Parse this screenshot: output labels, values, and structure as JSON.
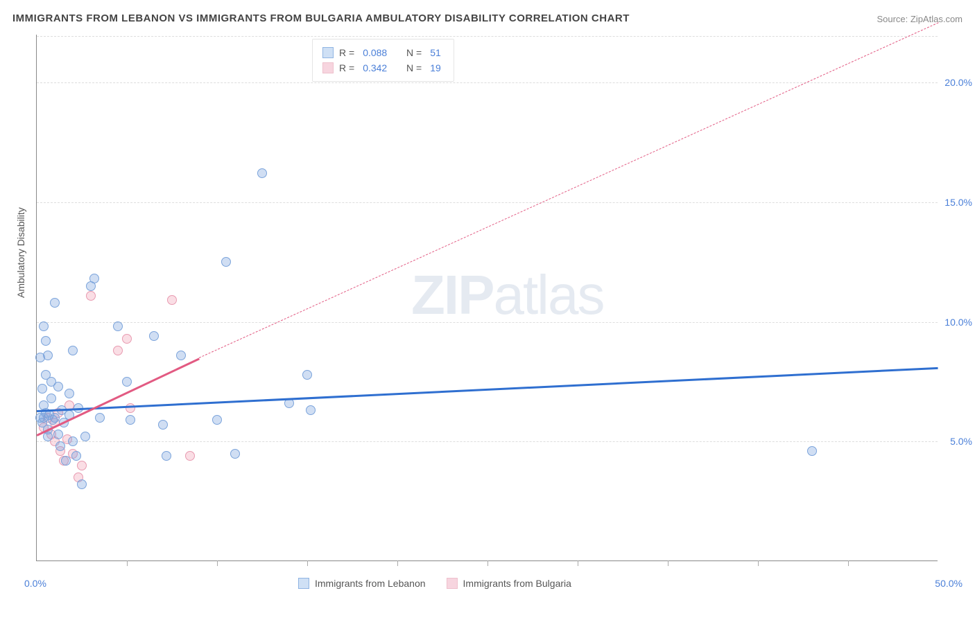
{
  "title": "IMMIGRANTS FROM LEBANON VS IMMIGRANTS FROM BULGARIA AMBULATORY DISABILITY CORRELATION CHART",
  "source": "Source: ZipAtlas.com",
  "ylabel": "Ambulatory Disability",
  "watermark_bold": "ZIP",
  "watermark_light": "atlas",
  "chart": {
    "type": "scatter",
    "xlim": [
      0,
      50
    ],
    "ylim": [
      0,
      22
    ],
    "yticks": [
      5,
      10,
      15,
      20
    ],
    "ytick_labels": [
      "5.0%",
      "10.0%",
      "15.0%",
      "20.0%"
    ],
    "xticks": [
      5,
      10,
      15,
      20,
      25,
      30,
      35,
      40,
      45
    ],
    "xmin_label": "0.0%",
    "xmax_label": "50.0%",
    "background_color": "#ffffff",
    "grid_color": "#dddddd",
    "marker_radius": 7,
    "marker_stroke_width": 1.5,
    "series": {
      "lebanon": {
        "label": "Immigrants from Lebanon",
        "fill": "rgba(120,160,220,0.35)",
        "stroke": "#7aa3db",
        "swatch_fill": "#cfe0f5",
        "swatch_border": "#8fb4e3",
        "line_color": "#2f6fd0",
        "R": "0.088",
        "N": "51",
        "trend": {
          "x1": 0,
          "y1": 6.3,
          "x2": 50,
          "y2": 8.1,
          "dash_after_x": 50
        },
        "points": [
          [
            0.2,
            6.0
          ],
          [
            0.3,
            5.8
          ],
          [
            0.5,
            6.2
          ],
          [
            0.4,
            6.5
          ],
          [
            0.6,
            5.5
          ],
          [
            0.3,
            7.2
          ],
          [
            0.8,
            6.8
          ],
          [
            0.5,
            9.2
          ],
          [
            0.6,
            8.6
          ],
          [
            1.0,
            10.8
          ],
          [
            0.4,
            9.8
          ],
          [
            0.8,
            7.5
          ],
          [
            1.2,
            7.3
          ],
          [
            1.5,
            5.8
          ],
          [
            1.8,
            6.1
          ],
          [
            2.0,
            5.0
          ],
          [
            1.6,
            4.2
          ],
          [
            2.2,
            4.4
          ],
          [
            2.5,
            3.2
          ],
          [
            3.0,
            11.5
          ],
          [
            3.2,
            11.8
          ],
          [
            4.5,
            9.8
          ],
          [
            5.0,
            7.5
          ],
          [
            5.2,
            5.9
          ],
          [
            6.5,
            9.4
          ],
          [
            7.0,
            5.7
          ],
          [
            7.2,
            4.4
          ],
          [
            8.0,
            8.6
          ],
          [
            10.0,
            5.9
          ],
          [
            10.5,
            12.5
          ],
          [
            11.0,
            4.5
          ],
          [
            12.5,
            16.2
          ],
          [
            14.0,
            6.6
          ],
          [
            15.0,
            7.8
          ],
          [
            15.2,
            6.3
          ],
          [
            0.7,
            6.1
          ],
          [
            1.0,
            6.0
          ],
          [
            1.2,
            5.3
          ],
          [
            1.3,
            4.8
          ],
          [
            1.8,
            7.0
          ],
          [
            2.3,
            6.4
          ],
          [
            2.7,
            5.2
          ],
          [
            3.5,
            6.0
          ],
          [
            0.2,
            8.5
          ],
          [
            0.4,
            6.0
          ],
          [
            0.6,
            5.2
          ],
          [
            0.9,
            5.9
          ],
          [
            1.4,
            6.3
          ],
          [
            2.0,
            8.8
          ],
          [
            0.5,
            7.8
          ],
          [
            43.0,
            4.6
          ]
        ]
      },
      "bulgaria": {
        "label": "Immigrants from Bulgaria",
        "fill": "rgba(240,160,180,0.35)",
        "stroke": "#e89ab0",
        "swatch_fill": "#f7d5df",
        "swatch_border": "#eec0cc",
        "line_color": "#e25a82",
        "R": "0.342",
        "N": "19",
        "trend": {
          "x1": 0,
          "y1": 5.3,
          "x2": 9,
          "y2": 8.5,
          "dash_after_x": 9,
          "dash_x2": 50,
          "dash_y2": 22.5
        },
        "points": [
          [
            0.4,
            5.6
          ],
          [
            0.6,
            6.0
          ],
          [
            0.8,
            5.3
          ],
          [
            1.0,
            5.0
          ],
          [
            1.2,
            6.2
          ],
          [
            1.3,
            4.6
          ],
          [
            1.5,
            4.2
          ],
          [
            1.7,
            5.1
          ],
          [
            2.0,
            4.5
          ],
          [
            2.3,
            3.5
          ],
          [
            2.5,
            4.0
          ],
          [
            3.0,
            11.1
          ],
          [
            4.5,
            8.8
          ],
          [
            5.0,
            9.3
          ],
          [
            5.2,
            6.4
          ],
          [
            7.5,
            10.9
          ],
          [
            8.5,
            4.4
          ],
          [
            1.8,
            6.5
          ],
          [
            1.0,
            5.8
          ]
        ]
      }
    }
  },
  "legend_top": {
    "R_label": "R =",
    "N_label": "N ="
  }
}
